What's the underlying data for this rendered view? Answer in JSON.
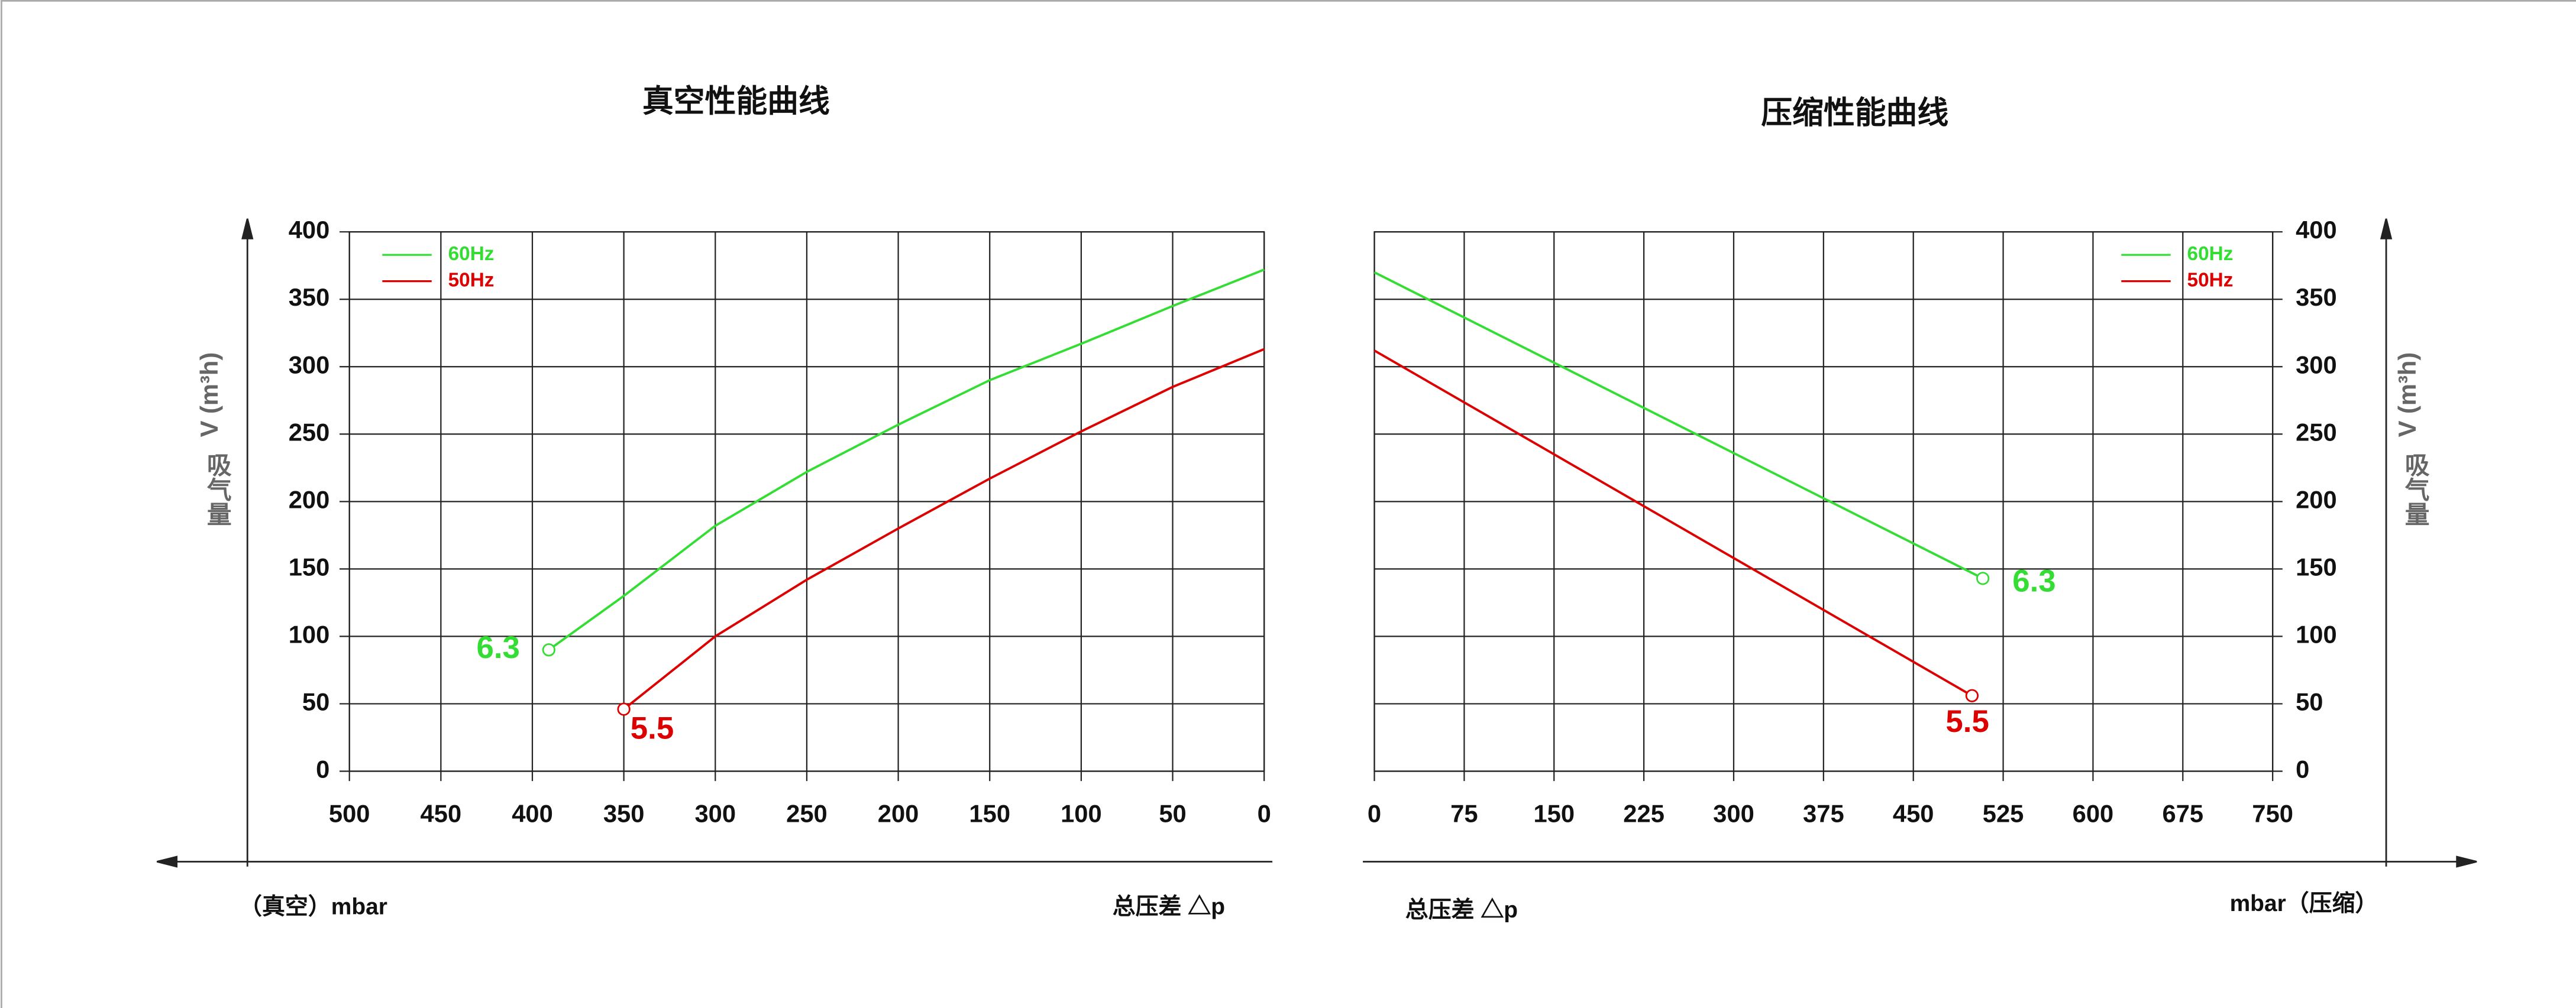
{
  "chart_data": [
    {
      "type": "line",
      "title": "真空性能曲线",
      "xlabel": "（真空）mbar",
      "xlabel_note": "总压差 △p",
      "ylabel": "V (m³h)",
      "ylabel_note": "吸气量",
      "xlim": [
        500,
        0
      ],
      "xticks": [
        500,
        450,
        400,
        350,
        300,
        250,
        200,
        150,
        100,
        50,
        0
      ],
      "ylim": [
        0,
        400
      ],
      "yticks": [
        0,
        50,
        100,
        150,
        200,
        250,
        300,
        350,
        400
      ],
      "yaxis_side": "left",
      "legend": "upper left",
      "grid": true,
      "series": [
        {
          "name": "60Hz",
          "color": "#33dd33",
          "annotation": "6.3",
          "x": [
            391,
            350,
            300,
            250,
            200,
            150,
            100,
            50,
            0
          ],
          "values": [
            90,
            130,
            182,
            222,
            257,
            290,
            317,
            345,
            372
          ]
        },
        {
          "name": "50Hz",
          "color": "#dd0000",
          "annotation": "5.5",
          "x": [
            350,
            300,
            250,
            200,
            150,
            100,
            50,
            0
          ],
          "values": [
            46,
            100,
            142,
            180,
            217,
            252,
            285,
            313
          ]
        }
      ]
    },
    {
      "type": "line",
      "title": "压缩性能曲线",
      "xlabel": "mbar（压缩）",
      "xlabel_note": "总压差 △p",
      "ylabel": "V (m³h)",
      "ylabel_note": "吸气量",
      "xlim": [
        0,
        750
      ],
      "xticks": [
        0,
        75,
        150,
        225,
        300,
        375,
        450,
        525,
        600,
        675,
        750
      ],
      "ylim": [
        0,
        400
      ],
      "yticks": [
        0,
        50,
        100,
        150,
        200,
        250,
        300,
        350,
        400
      ],
      "yaxis_side": "right",
      "legend": "upper right",
      "grid": true,
      "series": [
        {
          "name": "60Hz",
          "color": "#33dd33",
          "annotation": "6.3",
          "x": [
            0,
            508
          ],
          "values": [
            370,
            143
          ]
        },
        {
          "name": "50Hz",
          "color": "#dd0000",
          "annotation": "5.5",
          "x": [
            0,
            499
          ],
          "values": [
            312,
            56
          ]
        }
      ]
    }
  ]
}
